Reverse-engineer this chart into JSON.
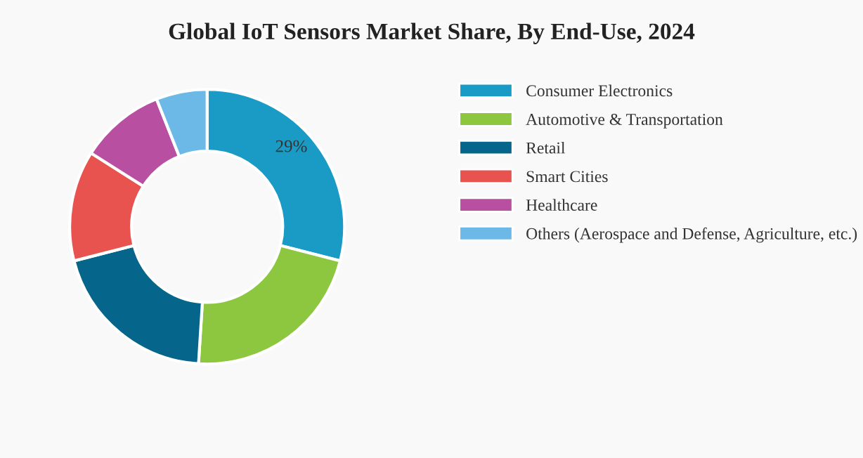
{
  "chart_data": {
    "type": "donut",
    "title": "Global IoT Sensors Market Share, By End-Use, 2024",
    "categories": [
      "Consumer Electronics",
      "Automotive & Transportation",
      "Retail",
      "Smart Cities",
      "Healthcare",
      "Others (Aerospace and Defense, Agriculture, etc.)"
    ],
    "values": [
      29,
      22,
      20,
      13,
      10,
      6
    ],
    "colors": [
      "#1a9bc6",
      "#8dc63f",
      "#05658a",
      "#e8524f",
      "#b84fa0",
      "#6cb9e7"
    ],
    "value_labels": [
      "29%",
      null,
      null,
      null,
      null,
      null
    ],
    "legend": "right"
  }
}
